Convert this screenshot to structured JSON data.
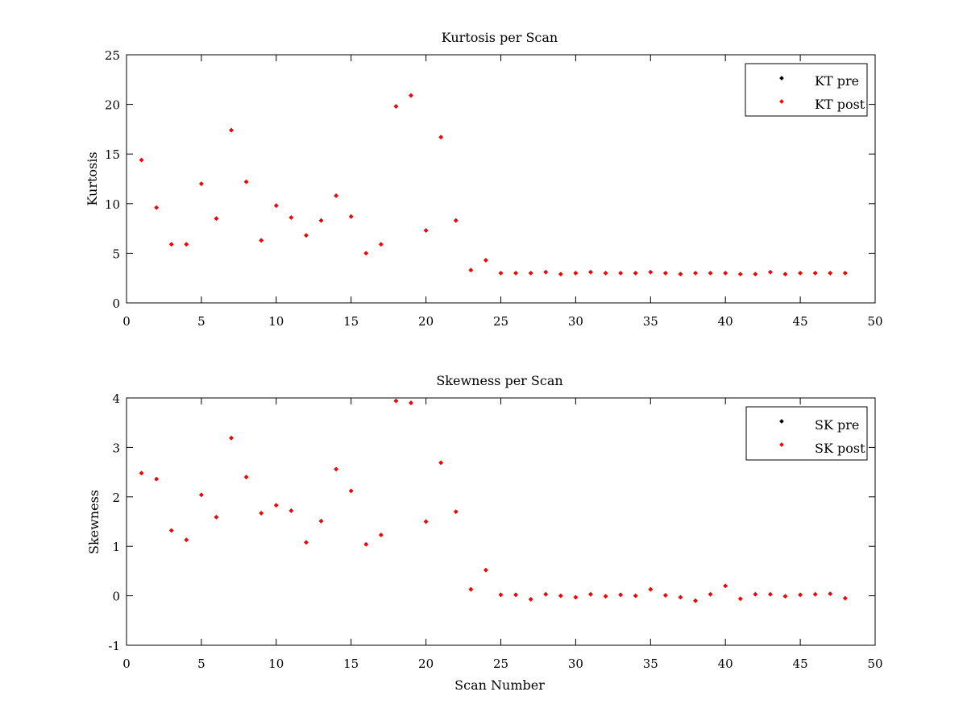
{
  "chart_data": [
    {
      "type": "scatter",
      "title": "Kurtosis per Scan",
      "xlabel": "",
      "ylabel": "Kurtosis",
      "xlim": [
        0,
        50
      ],
      "ylim": [
        0,
        25
      ],
      "xticks": [
        "0",
        "5",
        "10",
        "15",
        "20",
        "25",
        "30",
        "35",
        "40",
        "45",
        "50"
      ],
      "yticks": [
        "0",
        "5",
        "10",
        "15",
        "20",
        "25"
      ],
      "grid": false,
      "legend_position": "top-right",
      "x": [
        1,
        2,
        3,
        4,
        5,
        6,
        7,
        8,
        9,
        10,
        11,
        12,
        13,
        14,
        15,
        16,
        17,
        18,
        19,
        20,
        21,
        22,
        23,
        24,
        25,
        26,
        27,
        28,
        29,
        30,
        31,
        32,
        33,
        34,
        35,
        36,
        37,
        38,
        39,
        40,
        41,
        42,
        43,
        44,
        45,
        46,
        47,
        48
      ],
      "series": [
        {
          "name": "KT pre",
          "color": "#000000",
          "values": [
            14.4,
            9.6,
            5.9,
            5.9,
            12.0,
            8.5,
            17.4,
            12.2,
            6.3,
            9.8,
            8.6,
            6.8,
            8.3,
            10.8,
            8.7,
            5.0,
            5.9,
            19.8,
            20.9,
            7.3,
            16.7,
            8.3,
            3.3,
            4.3,
            3.0,
            3.0,
            3.0,
            3.1,
            2.9,
            3.0,
            3.1,
            3.0,
            3.0,
            3.0,
            3.1,
            3.0,
            2.9,
            3.0,
            3.0,
            3.0,
            2.9,
            2.9,
            3.1,
            2.9,
            3.0,
            3.0,
            3.0,
            3.0
          ]
        },
        {
          "name": "KT post",
          "color": "#ff0000",
          "values": [
            14.4,
            9.6,
            5.9,
            5.9,
            12.0,
            8.5,
            17.4,
            12.2,
            6.3,
            9.8,
            8.6,
            6.8,
            8.3,
            10.8,
            8.7,
            5.0,
            5.9,
            19.8,
            20.9,
            7.3,
            16.7,
            8.3,
            3.3,
            4.3,
            3.0,
            3.0,
            3.0,
            3.1,
            2.9,
            3.0,
            3.1,
            3.0,
            3.0,
            3.0,
            3.1,
            3.0,
            2.9,
            3.0,
            3.0,
            3.0,
            2.9,
            2.9,
            3.1,
            2.9,
            3.0,
            3.0,
            3.0,
            3.0
          ]
        }
      ]
    },
    {
      "type": "scatter",
      "title": "Skewness per Scan",
      "xlabel": "Scan Number",
      "ylabel": "Skewness",
      "xlim": [
        0,
        50
      ],
      "ylim": [
        -1,
        4
      ],
      "xticks": [
        "0",
        "5",
        "10",
        "15",
        "20",
        "25",
        "30",
        "35",
        "40",
        "45",
        "50"
      ],
      "yticks": [
        "-1",
        "0",
        "1",
        "2",
        "3",
        "4"
      ],
      "grid": false,
      "legend_position": "top-right",
      "x": [
        1,
        2,
        3,
        4,
        5,
        6,
        7,
        8,
        9,
        10,
        11,
        12,
        13,
        14,
        15,
        16,
        17,
        18,
        19,
        20,
        21,
        22,
        23,
        24,
        25,
        26,
        27,
        28,
        29,
        30,
        31,
        32,
        33,
        34,
        35,
        36,
        37,
        38,
        39,
        40,
        41,
        42,
        43,
        44,
        45,
        46,
        47,
        48
      ],
      "series": [
        {
          "name": "SK pre",
          "color": "#000000",
          "values": [
            2.48,
            2.36,
            1.32,
            1.13,
            2.04,
            1.59,
            3.19,
            2.4,
            1.67,
            1.83,
            1.72,
            1.08,
            1.51,
            2.56,
            2.12,
            1.04,
            1.23,
            3.94,
            3.9,
            1.5,
            2.69,
            1.7,
            0.13,
            0.52,
            0.02,
            0.02,
            -0.07,
            0.03,
            0.0,
            -0.03,
            0.03,
            -0.01,
            0.02,
            0.0,
            0.13,
            0.01,
            -0.03,
            -0.1,
            0.03,
            0.2,
            -0.06,
            0.03,
            0.03,
            -0.01,
            0.02,
            0.03,
            0.04,
            -0.05
          ]
        },
        {
          "name": "SK post",
          "color": "#ff0000",
          "values": [
            2.48,
            2.36,
            1.32,
            1.13,
            2.04,
            1.59,
            3.19,
            2.4,
            1.67,
            1.83,
            1.72,
            1.08,
            1.51,
            2.56,
            2.12,
            1.04,
            1.23,
            3.94,
            3.9,
            1.5,
            2.69,
            1.7,
            0.13,
            0.52,
            0.02,
            0.02,
            -0.07,
            0.03,
            0.0,
            -0.03,
            0.03,
            -0.01,
            0.02,
            0.0,
            0.13,
            0.01,
            -0.03,
            -0.1,
            0.03,
            0.2,
            -0.06,
            0.03,
            0.03,
            -0.01,
            0.02,
            0.03,
            0.04,
            -0.05
          ]
        }
      ]
    }
  ]
}
